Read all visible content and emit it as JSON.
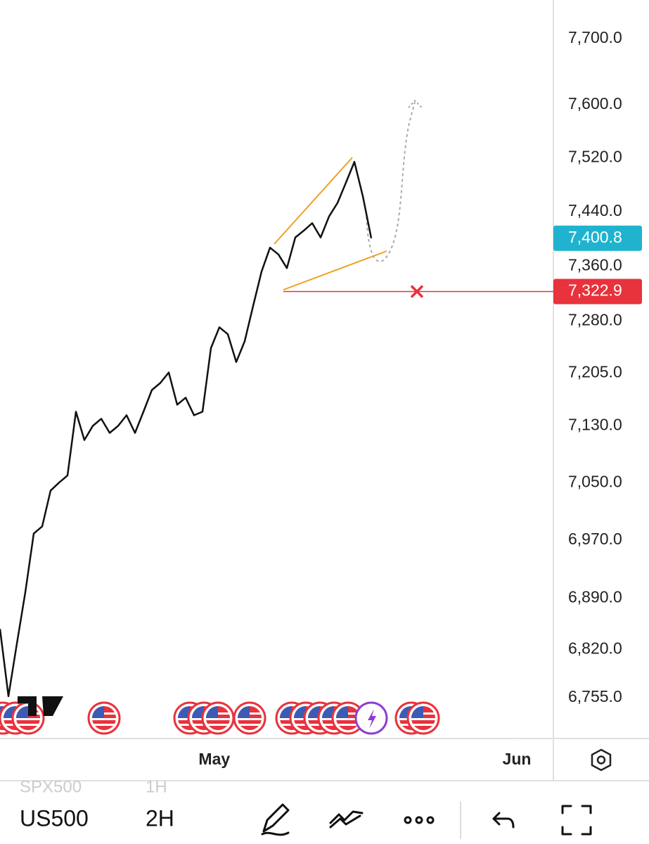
{
  "chart_data": {
    "type": "line",
    "log": true,
    "color": "#111111",
    "values": [
      6848,
      6757,
      6828,
      6898,
      6979,
      6989,
      7039,
      7050,
      7060,
      7150,
      7110,
      7130,
      7140,
      7120,
      7130,
      7145,
      7120,
      7150,
      7181,
      7191,
      7206,
      7160,
      7170,
      7145,
      7150,
      7241,
      7271,
      7261,
      7221,
      7251,
      7302,
      7352,
      7387,
      7377,
      7357,
      7402,
      7412,
      7423,
      7402,
      7433,
      7453,
      7483,
      7514,
      7463,
      7400.8
    ],
    "xlim": [
      0,
      65.5
    ],
    "xticks": [
      {
        "value": 25.4,
        "label": "May"
      },
      {
        "value": 61.25,
        "label": "Jun"
      }
    ],
    "ylim": [
      6700.5,
      7759.6
    ],
    "yticks": [
      {
        "value": 7700,
        "label": "7,700.0"
      },
      {
        "value": 7600,
        "label": "7,600.0"
      },
      {
        "value": 7520,
        "label": "7,520.0"
      },
      {
        "value": 7440,
        "label": "7,440.0"
      },
      {
        "value": 7360,
        "label": "7,360.0"
      },
      {
        "value": 7280,
        "label": "7,280.0"
      },
      {
        "value": 7205,
        "label": "7,205.0"
      },
      {
        "value": 7130,
        "label": "7,130.0"
      },
      {
        "value": 7050,
        "label": "7,050.0"
      },
      {
        "value": 6970,
        "label": "6,970.0"
      },
      {
        "value": 6890,
        "label": "6,890.0"
      },
      {
        "value": 6820,
        "label": "6,820.0"
      },
      {
        "value": 6755,
        "label": "6,755.0"
      }
    ],
    "price_tags": [
      {
        "value": 7400.8,
        "label": "7,400.8",
        "color": "#1fb3cf"
      },
      {
        "value": 7322.9,
        "label": "7,322.9",
        "color": "#e8323c"
      }
    ]
  },
  "toolbar": {
    "symbol_ghost": "SPX500",
    "interval_ghost": "1H",
    "symbol": "US500",
    "interval": "2H"
  }
}
